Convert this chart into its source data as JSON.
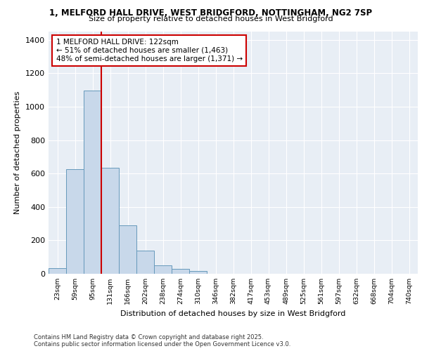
{
  "title_line1": "1, MELFORD HALL DRIVE, WEST BRIDGFORD, NOTTINGHAM, NG2 7SP",
  "title_line2": "Size of property relative to detached houses in West Bridgford",
  "xlabel": "Distribution of detached houses by size in West Bridgford",
  "ylabel": "Number of detached properties",
  "bar_labels": [
    "23sqm",
    "59sqm",
    "95sqm",
    "131sqm",
    "166sqm",
    "202sqm",
    "238sqm",
    "274sqm",
    "310sqm",
    "346sqm",
    "382sqm",
    "417sqm",
    "453sqm",
    "489sqm",
    "525sqm",
    "561sqm",
    "597sqm",
    "632sqm",
    "668sqm",
    "704sqm",
    "740sqm"
  ],
  "bar_values": [
    35,
    625,
    1095,
    635,
    290,
    140,
    50,
    30,
    15,
    0,
    0,
    0,
    0,
    0,
    0,
    0,
    0,
    0,
    0,
    0,
    0
  ],
  "bar_color": "#c8d8ea",
  "bar_edge_color": "#6699bb",
  "vline_color": "#cc0000",
  "annotation_text": "1 MELFORD HALL DRIVE: 122sqm\n← 51% of detached houses are smaller (1,463)\n48% of semi-detached houses are larger (1,371) →",
  "ylim": [
    0,
    1450
  ],
  "yticks": [
    0,
    200,
    400,
    600,
    800,
    1000,
    1200,
    1400
  ],
  "bg_color": "#e8eef5",
  "footer_line1": "Contains HM Land Registry data © Crown copyright and database right 2025.",
  "footer_line2": "Contains public sector information licensed under the Open Government Licence v3.0."
}
